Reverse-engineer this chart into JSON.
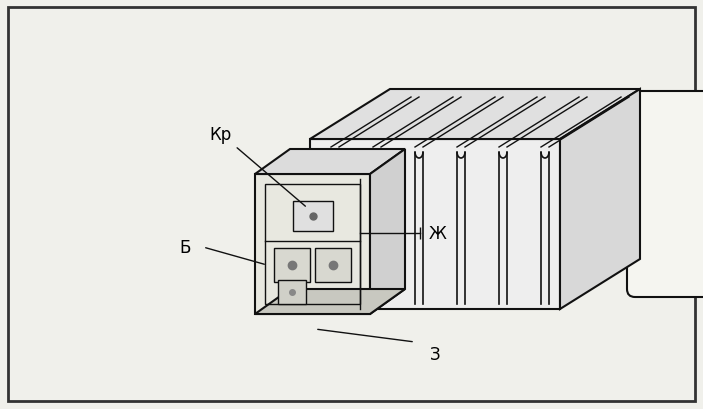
{
  "fig_width": 7.03,
  "fig_height": 4.1,
  "dpi": 100,
  "bg_color": "#f5f5f0",
  "border_color": "#222222",
  "border_linewidth": 2.0,
  "line_color": "#111111",
  "label_Kr": "Кр",
  "label_B": "Б",
  "label_Zh": "Ж",
  "label_Z": "з",
  "label_fontsize": 12
}
